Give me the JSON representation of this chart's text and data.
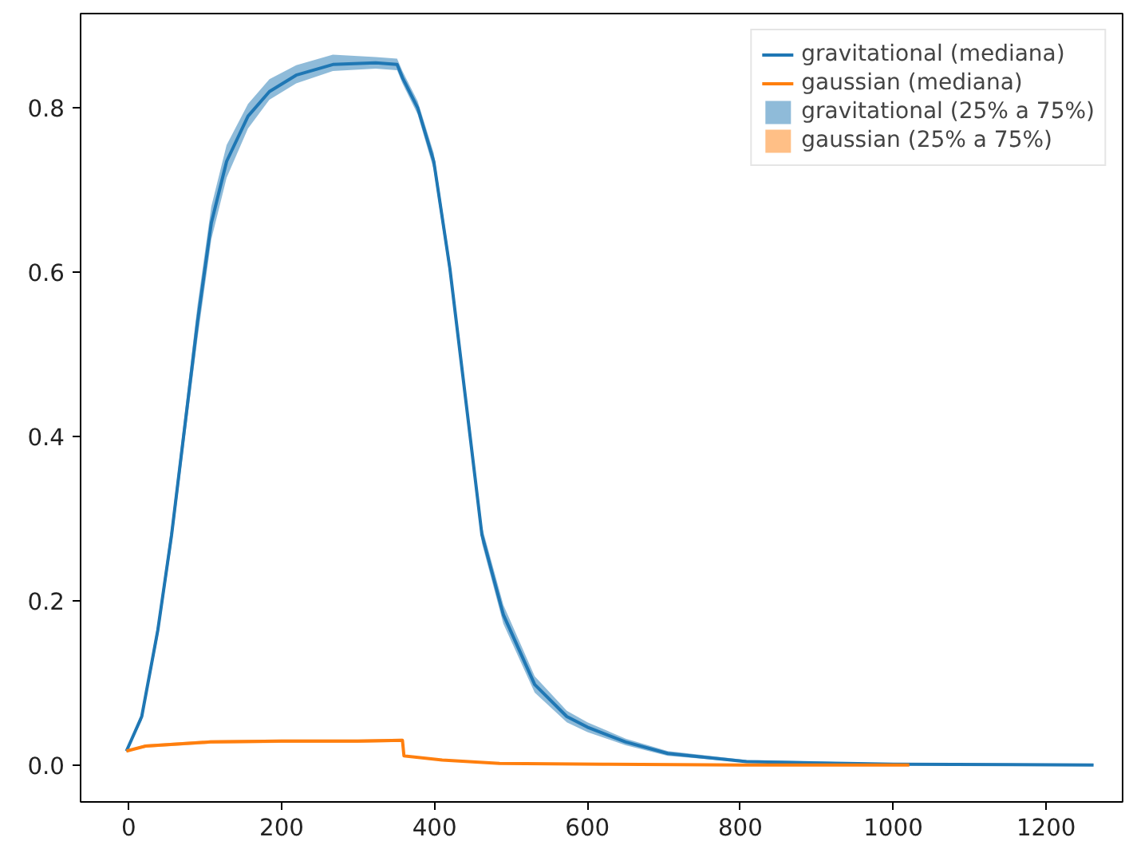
{
  "chart_data": {
    "type": "line",
    "xlim": [
      -63,
      1300
    ],
    "ylim": [
      -0.045,
      0.915
    ],
    "xticks": [
      0,
      200,
      400,
      600,
      800,
      1000,
      1200
    ],
    "yticks": [
      {
        "value": 0,
        "label": "0.0"
      },
      {
        "value": 0.2,
        "label": "0.2"
      },
      {
        "value": 0.4,
        "label": "0.4"
      },
      {
        "value": 0.6,
        "label": "0.6"
      },
      {
        "value": 0.8,
        "label": "0.8"
      }
    ],
    "grid": false,
    "legend": "top right",
    "marker": "none",
    "line_style": "solid",
    "series": [
      {
        "name": "gravitational (mediana)",
        "color": "#1f77b4",
        "x": [
          -3,
          17,
          38,
          56,
          73,
          90,
          108,
          128,
          156,
          184,
          219,
          267,
          323,
          351,
          358,
          378,
          399,
          420,
          441,
          462,
          490,
          531,
          573,
          600,
          650,
          705,
          808,
          1000,
          1262
        ],
        "values": [
          0.017,
          0.059,
          0.164,
          0.28,
          0.41,
          0.54,
          0.66,
          0.735,
          0.79,
          0.82,
          0.84,
          0.853,
          0.855,
          0.853,
          0.837,
          0.8,
          0.735,
          0.605,
          0.443,
          0.28,
          0.183,
          0.098,
          0.059,
          0.046,
          0.028,
          0.014,
          0.004,
          0.001,
          0.0
        ]
      },
      {
        "name": "gaussian (mediana)",
        "color": "#ff7f0e",
        "x": [
          -3,
          22,
          107,
          200,
          300,
          358,
          360,
          410,
          485,
          620,
          800,
          1021
        ],
        "values": [
          0.017,
          0.023,
          0.028,
          0.029,
          0.029,
          0.03,
          0.011,
          0.006,
          0.002,
          0.001,
          0.0,
          0.0
        ]
      },
      {
        "name": "gravitational (25% a 75%)",
        "color": "#1f77b4",
        "x": [
          -3,
          17,
          38,
          56,
          73,
          90,
          108,
          128,
          156,
          184,
          219,
          267,
          323,
          351,
          358,
          378,
          399,
          420,
          441,
          462,
          490,
          531,
          573,
          600,
          650,
          705,
          808,
          1000,
          1262
        ],
        "values": [
          null,
          null,
          null,
          null,
          null,
          null,
          null,
          null,
          null,
          null,
          null,
          null,
          null,
          null,
          null,
          null,
          null,
          null,
          null,
          null,
          null,
          null,
          null,
          null,
          null,
          null,
          null,
          null,
          null
        ],
        "lower": [
          0.015,
          0.054,
          0.155,
          0.268,
          0.395,
          0.52,
          0.64,
          0.715,
          0.775,
          0.81,
          0.83,
          0.845,
          0.848,
          0.846,
          0.83,
          0.792,
          0.725,
          0.595,
          0.433,
          0.27,
          0.172,
          0.088,
          0.052,
          0.04,
          0.024,
          0.011,
          0.003,
          0.0,
          0.0
        ],
        "upper": [
          0.019,
          0.064,
          0.173,
          0.292,
          0.425,
          0.56,
          0.68,
          0.755,
          0.805,
          0.835,
          0.852,
          0.865,
          0.862,
          0.86,
          0.845,
          0.808,
          0.745,
          0.615,
          0.453,
          0.29,
          0.195,
          0.108,
          0.066,
          0.052,
          0.032,
          0.017,
          0.006,
          0.002,
          0.001
        ]
      },
      {
        "name": "gaussian (25% a 75%)",
        "color": "#ff7f0e",
        "x": [
          -3,
          22,
          107,
          200,
          300,
          358,
          360,
          410,
          485,
          620,
          800,
          1021
        ],
        "values": [
          null,
          null,
          null,
          null,
          null,
          null,
          null,
          null,
          null,
          null,
          null,
          null
        ],
        "lower": [
          0.016,
          0.021,
          0.026,
          0.027,
          0.027,
          0.028,
          0.01,
          0.005,
          0.001,
          0.0,
          0.0,
          0.0
        ],
        "upper": [
          0.018,
          0.025,
          0.03,
          0.031,
          0.031,
          0.032,
          0.012,
          0.007,
          0.003,
          0.001,
          0.001,
          0.001
        ]
      }
    ]
  }
}
